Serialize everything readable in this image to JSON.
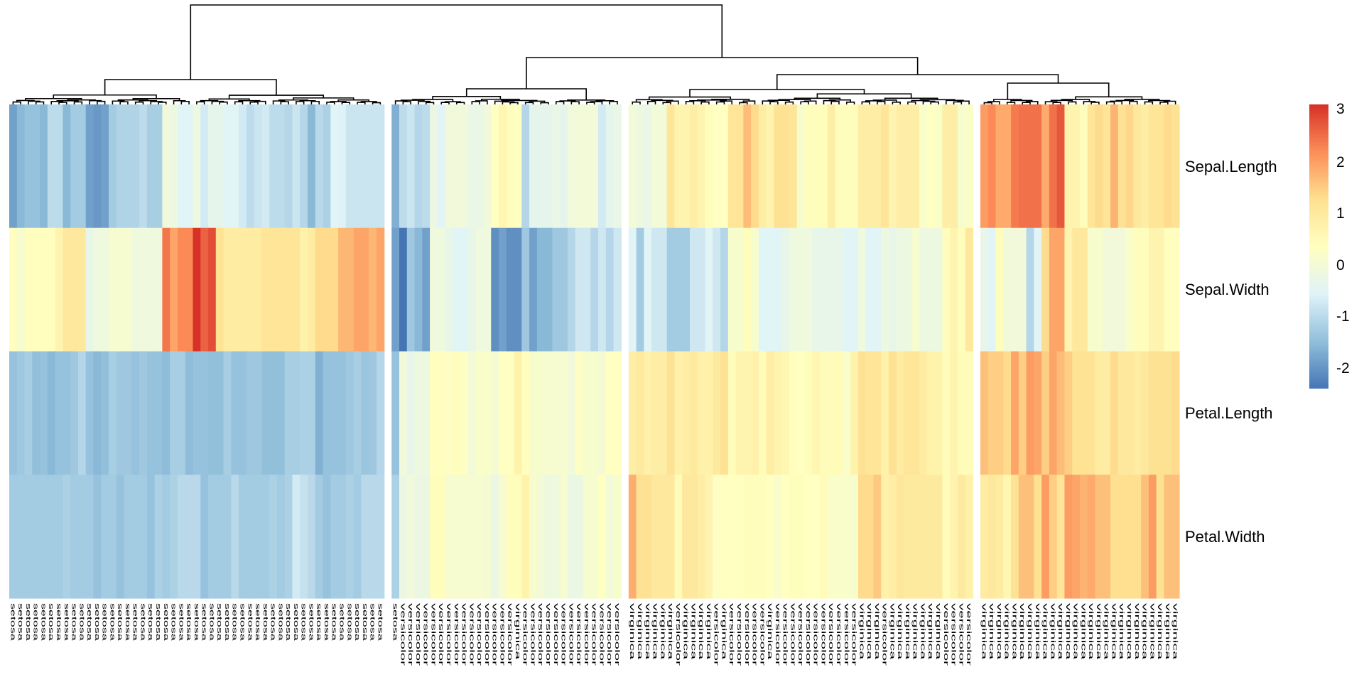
{
  "chart_data": {
    "type": "heatmap",
    "title": "",
    "rows": [
      "Sepal.Length",
      "Sepal.Width",
      "Petal.Length",
      "Petal.Width"
    ],
    "column_groups_sizes": [
      49,
      30,
      45,
      26
    ],
    "columns": [
      "setosa",
      "setosa",
      "setosa",
      "setosa",
      "setosa",
      "setosa",
      "setosa",
      "setosa",
      "setosa",
      "setosa",
      "setosa",
      "setosa",
      "setosa",
      "setosa",
      "setosa",
      "setosa",
      "setosa",
      "setosa",
      "setosa",
      "setosa",
      "setosa",
      "setosa",
      "setosa",
      "setosa",
      "setosa",
      "setosa",
      "setosa",
      "setosa",
      "setosa",
      "setosa",
      "setosa",
      "setosa",
      "setosa",
      "setosa",
      "setosa",
      "setosa",
      "setosa",
      "setosa",
      "setosa",
      "setosa",
      "setosa",
      "setosa",
      "setosa",
      "setosa",
      "setosa",
      "setosa",
      "setosa",
      "setosa",
      "setosa",
      "setosa",
      "versicolor",
      "versicolor",
      "versicolor",
      "versicolor",
      "versicolor",
      "versicolor",
      "versicolor",
      "versicolor",
      "versicolor",
      "versicolor",
      "versicolor",
      "versicolor",
      "versicolor",
      "versicolor",
      "versicolor",
      "virginica",
      "versicolor",
      "versicolor",
      "versicolor",
      "versicolor",
      "versicolor",
      "versicolor",
      "versicolor",
      "versicolor",
      "versicolor",
      "versicolor",
      "versicolor",
      "versicolor",
      "versicolor",
      "virginica",
      "virginica",
      "virginica",
      "virginica",
      "virginica",
      "virginica",
      "versicolor",
      "virginica",
      "virginica",
      "virginica",
      "virginica",
      "versicolor",
      "virginica",
      "versicolor",
      "versicolor",
      "versicolor",
      "versicolor",
      "versicolor",
      "virginica",
      "versicolor",
      "versicolor",
      "versicolor",
      "versicolor",
      "versicolor",
      "versicolor",
      "versicolor",
      "versicolor",
      "versicolor",
      "versicolor",
      "versicolor",
      "virginica",
      "virginica",
      "virginica",
      "versicolor",
      "virginica",
      "virginica",
      "virginica",
      "virginica",
      "virginica",
      "virginica",
      "virginica",
      "versicolor",
      "versicolor",
      "versicolor",
      "versicolor",
      "virginica",
      "virginica",
      "virginica",
      "virginica",
      "virginica",
      "virginica",
      "virginica",
      "virginica",
      "virginica",
      "virginica",
      "virginica",
      "virginica",
      "virginica",
      "virginica",
      "virginica",
      "virginica",
      "virginica",
      "virginica",
      "virginica",
      "virginica",
      "virginica",
      "virginica",
      "virginica",
      "virginica",
      "virginica",
      "virginica"
    ],
    "values": [
      [
        -1.9,
        -1.6,
        -1.45,
        -1.45,
        -1.6,
        -1.0,
        -1.0,
        -1.6,
        -1.3,
        -1.3,
        -1.9,
        -2.0,
        -1.9,
        -1.3,
        -1.15,
        -1.15,
        -1.15,
        -1.0,
        -1.25,
        -1.25,
        -0.1,
        -0.2,
        -0.55,
        -0.55,
        -0.2,
        -0.75,
        -0.4,
        -0.4,
        -0.55,
        -0.55,
        -0.75,
        -1.0,
        -0.85,
        -0.75,
        -1.0,
        -1.0,
        -1.1,
        -0.85,
        -1.1,
        -1.6,
        -1.05,
        -1.2,
        -0.55,
        -0.6,
        -0.85,
        -0.85,
        -0.85,
        -0.85,
        -0.85,
        -1.7,
        -1.0,
        -0.85,
        -1.1,
        -1.0,
        -0.25,
        -0.55,
        -0.1,
        -0.1,
        -0.1,
        -0.3,
        -0.3,
        -0.1,
        0.3,
        0.6,
        0.4,
        0.3,
        -1.1,
        -0.4,
        -0.4,
        -0.4,
        -0.3,
        -0.4,
        -0.1,
        -0.05,
        -0.05,
        -0.05,
        -0.75,
        -0.4,
        -0.3,
        -0.05,
        -0.2,
        -0.3,
        -0.05,
        -0.05,
        1.1,
        0.65,
        0.65,
        0.85,
        0.65,
        0.4,
        0.3,
        0.3,
        1.1,
        1.1,
        1.65,
        1.3,
        0.85,
        0.65,
        1.2,
        1.2,
        1.1,
        0.1,
        0.4,
        0.4,
        0.4,
        0.85,
        0.4,
        0.4,
        0.4,
        0.85,
        0.85,
        0.85,
        1.1,
        0.65,
        0.85,
        0.85,
        0.85,
        0.15,
        0.3,
        0.2,
        0.85,
        0.85,
        0.1,
        0.2,
        2.0,
        2.2,
        1.85,
        1.85,
        2.35,
        2.45,
        2.45,
        2.45,
        1.85,
        2.45,
        2.7,
        0.65,
        0.65,
        0.4,
        1.1,
        1.3,
        1.1,
        1.75,
        1.2,
        1.35,
        1.0,
        0.85,
        1.1,
        1.1,
        1.3,
        1.2
      ],
      [
        0.35,
        0.05,
        0.35,
        0.35,
        0.35,
        0.35,
        0.65,
        1.0,
        1.0,
        1.0,
        -0.35,
        -0.15,
        -0.15,
        0.05,
        0.05,
        0.05,
        -0.15,
        -0.15,
        -0.15,
        -0.15,
        2.4,
        1.9,
        2.2,
        2.2,
        3.08,
        2.6,
        2.8,
        1.15,
        0.9,
        0.9,
        0.9,
        0.9,
        0.9,
        1.1,
        1.1,
        1.1,
        1.1,
        1.1,
        0.7,
        0.9,
        1.3,
        1.3,
        1.3,
        1.7,
        1.7,
        1.9,
        1.9,
        1.7,
        1.9,
        -1.9,
        -2.43,
        -1.35,
        -1.6,
        -1.9,
        -0.15,
        -0.15,
        -0.35,
        -0.55,
        -0.55,
        -0.35,
        -0.15,
        -0.15,
        -2.1,
        -1.9,
        -2.1,
        -2.1,
        -1.35,
        -1.9,
        -1.6,
        -1.6,
        -1.35,
        -1.35,
        -1.1,
        -0.8,
        -0.8,
        -1.1,
        -0.8,
        -1.1,
        -0.8,
        -0.55,
        -1.3,
        -0.55,
        -0.8,
        -0.8,
        -1.3,
        -1.3,
        -1.3,
        -0.8,
        -0.8,
        -0.55,
        -0.8,
        -1.1,
        0.1,
        0.1,
        0.4,
        0.1,
        -0.55,
        -0.55,
        -0.55,
        -0.35,
        -0.15,
        -0.15,
        -0.15,
        -0.35,
        -0.35,
        -0.35,
        -0.35,
        -0.55,
        -0.55,
        -0.15,
        -0.55,
        -0.55,
        -0.2,
        -0.35,
        -0.2,
        -0.2,
        0.05,
        -0.2,
        -0.2,
        -0.2,
        0.4,
        0.65,
        0.4,
        1.0,
        -0.35,
        -0.55,
        0.4,
        -0.1,
        -0.1,
        -0.1,
        -1.1,
        -0.55,
        1.3,
        1.9,
        1.9,
        0.65,
        1.0,
        1.0,
        0.1,
        0.1,
        -0.1,
        -0.1,
        -0.1,
        0.15,
        0.4,
        0.4,
        0.65,
        0.65,
        0.35,
        0.35
      ],
      [
        -1.45,
        -1.35,
        -1.25,
        -1.5,
        -1.45,
        -1.6,
        -1.45,
        -1.45,
        -1.35,
        -1.1,
        -1.45,
        -1.6,
        -1.5,
        -1.25,
        -1.35,
        -1.35,
        -1.45,
        -1.35,
        -1.45,
        -1.45,
        -1.55,
        -1.25,
        -1.25,
        -1.55,
        -1.45,
        -1.45,
        -1.5,
        -1.5,
        -1.25,
        -1.45,
        -1.45,
        -1.35,
        -1.35,
        -1.5,
        -1.5,
        -1.5,
        -1.25,
        -1.25,
        -1.2,
        -1.2,
        -1.7,
        -1.45,
        -1.45,
        -1.45,
        -1.35,
        -1.25,
        -1.4,
        -1.35,
        -1.1,
        -1.45,
        -0.1,
        -0.35,
        -0.2,
        -0.2,
        0.35,
        0.35,
        0.25,
        0.4,
        0.25,
        -0.05,
        0.15,
        0.15,
        0.0,
        0.3,
        0.3,
        0.7,
        0.35,
        0.1,
        0.1,
        0.05,
        0.05,
        0.05,
        -0.1,
        0.25,
        0.1,
        0.1,
        0.0,
        0.3,
        0.3,
        0.85,
        0.95,
        0.75,
        0.85,
        0.85,
        1.2,
        0.75,
        0.85,
        0.95,
        0.75,
        0.75,
        0.95,
        1.2,
        0.45,
        0.65,
        0.65,
        0.75,
        0.45,
        0.85,
        0.65,
        0.6,
        0.35,
        0.3,
        0.4,
        0.6,
        0.45,
        0.45,
        0.45,
        0.15,
        0.7,
        1.2,
        1.1,
        1.1,
        0.75,
        1.2,
        0.9,
        1.1,
        1.1,
        0.9,
        0.7,
        0.7,
        0.45,
        0.65,
        0.45,
        0.45,
        1.6,
        1.45,
        1.45,
        1.3,
        1.9,
        1.45,
        2.0,
        1.9,
        1.45,
        1.9,
        1.65,
        1.45,
        1.15,
        1.15,
        1.15,
        0.9,
        0.9,
        1.3,
        1.0,
        1.0,
        0.9,
        1.0,
        1.2,
        1.2,
        1.2,
        1.3
      ],
      [
        -1.3,
        -1.3,
        -1.3,
        -1.3,
        -1.3,
        -1.3,
        -1.3,
        -1.2,
        -1.3,
        -1.3,
        -1.3,
        -1.45,
        -1.3,
        -1.3,
        -1.45,
        -1.3,
        -1.3,
        -1.3,
        -1.45,
        -1.2,
        -1.3,
        -1.2,
        -1.05,
        -1.05,
        -1.05,
        -1.45,
        -1.3,
        -1.3,
        -1.3,
        -1.05,
        -1.3,
        -1.3,
        -1.3,
        -1.3,
        -1.2,
        -1.3,
        -1.2,
        -0.75,
        -0.9,
        -1.05,
        -1.3,
        -1.45,
        -1.3,
        -1.3,
        -1.2,
        -1.3,
        -1.05,
        -1.05,
        -1.05,
        -1.2,
        -0.25,
        -0.1,
        -0.25,
        -0.25,
        0.4,
        0.4,
        0.05,
        0.05,
        0.05,
        0.05,
        0.05,
        0.0,
        -0.25,
        0.05,
        0.4,
        0.4,
        0.7,
        0.1,
        -0.05,
        -0.2,
        -0.15,
        0.05,
        -0.25,
        -0.25,
        0.05,
        0.05,
        0.3,
        -0.05,
        0.1,
        1.8,
        1.2,
        1.2,
        1.0,
        1.0,
        1.0,
        0.45,
        1.0,
        1.0,
        0.85,
        0.65,
        0.25,
        0.3,
        0.3,
        0.3,
        0.4,
        0.4,
        0.4,
        0.3,
        0.15,
        0.3,
        0.4,
        0.4,
        0.3,
        0.3,
        0.45,
        0.15,
        0.15,
        0.15,
        0.1,
        1.3,
        1.3,
        1.5,
        0.75,
        0.85,
        1.05,
        0.95,
        0.95,
        0.95,
        0.95,
        0.95,
        0.45,
        0.65,
        0.95,
        0.75,
        0.9,
        1.0,
        0.9,
        0.6,
        1.2,
        1.6,
        1.6,
        1.2,
        2.0,
        1.45,
        1.1,
        2.0,
        1.9,
        1.75,
        1.85,
        1.6,
        1.6,
        1.25,
        1.25,
        1.25,
        1.25,
        1.6,
        2.0,
        1.2,
        1.6,
        1.6
      ]
    ],
    "color_scale": {
      "min": -2.43,
      "max": 3.09,
      "colors": [
        "#4575B4",
        "#91BFDB",
        "#E0F3F8",
        "#FFFFBF",
        "#FEE090",
        "#FC8D59",
        "#D73027"
      ]
    },
    "legend": {
      "position": "right",
      "ticks": [
        3,
        2,
        1,
        0,
        -1,
        -2
      ],
      "tick_labels": [
        "3",
        "2",
        "1",
        "0",
        "-1",
        "-2"
      ]
    },
    "dendrogram": {
      "columns": true,
      "rows": false
    },
    "grid": false
  }
}
